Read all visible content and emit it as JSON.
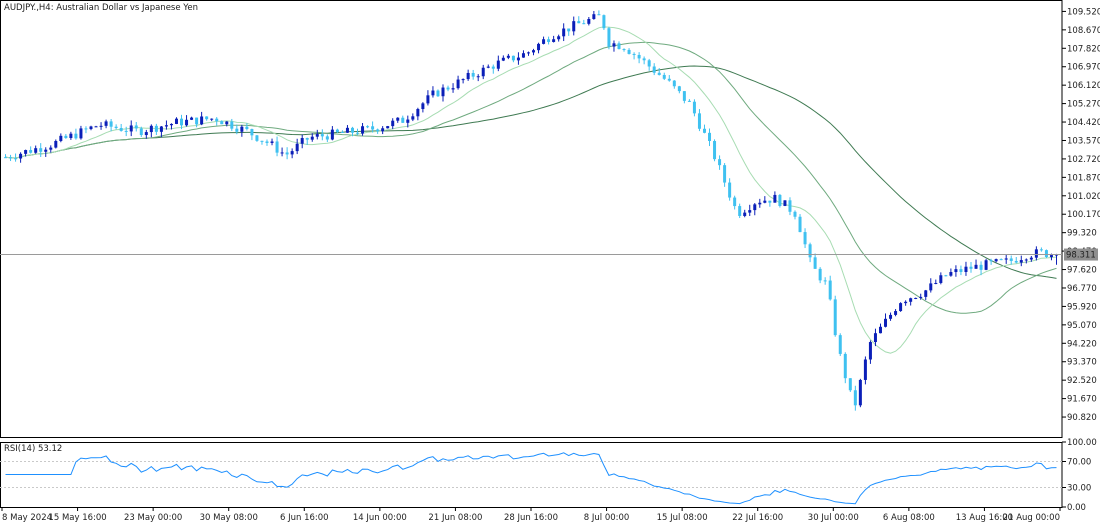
{
  "chart": {
    "title": "AUDJPY.,H4:  Australian Dollar vs Japanese Yen",
    "bid_price": "98.311",
    "y_ticks": [
      "109.520",
      "108.670",
      "107.820",
      "106.970",
      "106.120",
      "105.270",
      "104.420",
      "103.570",
      "102.720",
      "101.870",
      "101.020",
      "100.170",
      "99.320",
      "98.470",
      "97.620",
      "96.770",
      "95.920",
      "95.070",
      "94.220",
      "93.370",
      "92.520",
      "91.670",
      "90.820"
    ],
    "ylim": [
      89.9,
      110.0
    ],
    "candle_count": 210,
    "colors": {
      "bull": "#0b1fb8",
      "bear": "#3fc1f0",
      "ma_fast": "#a7dcb2",
      "ma_mid": "#6faa7f",
      "ma_slow": "#3f7a52",
      "bid_line": "#9a9a9a",
      "label_box": "#8f8f8f",
      "grid": "#c9c9c9"
    }
  },
  "rsi": {
    "title": "RSI(14) 53.12",
    "y_ticks": [
      "100.00",
      "70.00",
      "30.00",
      "0.00"
    ],
    "color": "#1e90ff"
  },
  "x_axis": {
    "labels": [
      "8 May 2024",
      "15 May 16:00",
      "23 May 00:00",
      "30 May 08:00",
      "6 Jun 16:00",
      "14 Jun 00:00",
      "21 Jun 08:00",
      "28 Jun 16:00",
      "8 Jul 00:00",
      "15 Jul 08:00",
      "22 Jul 16:00",
      "30 Jul 00:00",
      "6 Aug 08:00",
      "13 Aug 16:00",
      "21 Aug 00:00"
    ]
  }
}
